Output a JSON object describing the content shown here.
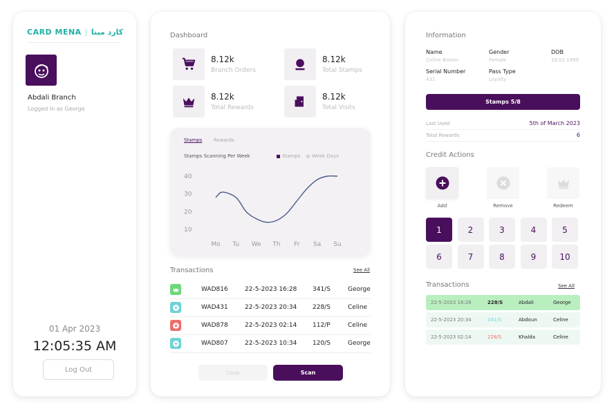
{
  "colors": {
    "brand": "#4a0f5c",
    "teal": "#1fb0a4",
    "green_row": "#b9efbf",
    "light_row": "#eef8f3"
  },
  "left": {
    "logo_en": "CARD MENA",
    "logo_sep": "|",
    "logo_ar": "كارد مينا",
    "branch": "Abdali Branch",
    "logged": "Logged In as George",
    "date": "01 Apr 2023",
    "time": "12:05:35 AM",
    "logout": "Log Out"
  },
  "dashboard": {
    "title": "Dashboard",
    "stats": [
      {
        "value": "8.12k",
        "label": "Branch Orders",
        "icon": "cart-icon"
      },
      {
        "value": "8.12k",
        "label": "Total Stamps",
        "icon": "stamp-icon"
      },
      {
        "value": "8.12k",
        "label": "Total Rewards",
        "icon": "crown-icon"
      },
      {
        "value": "8.12k",
        "label": "Total Visits",
        "icon": "door-icon"
      }
    ],
    "tabs": {
      "active": "Stamps",
      "inactive": "Rewards"
    }
  },
  "chart_data": {
    "type": "line",
    "title": "Stamps Scanning Per Week",
    "legend": [
      "Stamps",
      "Week Days"
    ],
    "categories": [
      "Mo",
      "Tu",
      "We",
      "Th",
      "Fr",
      "Sa",
      "Su"
    ],
    "x": [
      0,
      0.33,
      1,
      1.5,
      2,
      2.5,
      3,
      3.5,
      4,
      4.5,
      5,
      5.5,
      6
    ],
    "y": [
      28,
      31,
      28,
      20,
      16,
      14,
      15,
      19,
      26,
      33,
      38,
      40,
      40
    ],
    "yticks": [
      10,
      20,
      30,
      40
    ],
    "ylim": [
      10,
      40
    ],
    "color": "#4a5a8c"
  },
  "transactions": {
    "title": "Transactions",
    "see_all": "See All",
    "rows": [
      {
        "id": "WAD816",
        "date": "22-5-2023 16:28",
        "amount": "341/S",
        "name": "George",
        "icon": "crown-icon",
        "color": "#6fd77a"
      },
      {
        "id": "WAD431",
        "date": "22-5-2023 20:34",
        "amount": "228/S",
        "name": "Celine",
        "icon": "plus-icon",
        "color": "#6fd3d6"
      },
      {
        "id": "WAD878",
        "date": "22-5-2023 02:14",
        "amount": "112/P",
        "name": "Celine",
        "icon": "close-icon",
        "color": "#ef6b6b"
      },
      {
        "id": "WAD807",
        "date": "22-5-2023 10:34",
        "amount": "120/S",
        "name": "George",
        "icon": "plus-icon",
        "color": "#6fd3d6"
      }
    ],
    "close": "Close",
    "scan": "Scan"
  },
  "info": {
    "title": "Information",
    "name_k": "Name",
    "name_v": "Celine Borom",
    "gender_k": "Gender",
    "gender_v": "Female",
    "dob_k": "DOB",
    "dob_v": "18.01.1999",
    "serial_k": "Serial Number",
    "serial_v": "431",
    "pass_k": "Pass Type",
    "pass_v": "Loyalty",
    "stamps": "Stamps 5/8",
    "last_used_k": "Last Used",
    "last_used_v": "5th of March 2023",
    "rewards_k": "Total Rewards",
    "rewards_v": "6"
  },
  "credit": {
    "title": "Credit Actions",
    "add": "Add",
    "remove": "Remove",
    "redeem": "Redeem",
    "numbers": [
      "1",
      "2",
      "3",
      "4",
      "5",
      "6",
      "7",
      "8",
      "9",
      "10"
    ]
  },
  "right_tx": {
    "title": "Transactions",
    "see_all": "See All",
    "rows": [
      {
        "date": "22-5-2023 16:28",
        "amount": "228/S",
        "branch": "Abdali",
        "name": "George",
        "amount_color": "#222222",
        "bg": "#b9efbf"
      },
      {
        "date": "22-5-2023 20:34",
        "amount": "341/S",
        "branch": "Abdoun",
        "name": "Celine",
        "amount_color": "#6fd3d6",
        "bg": "#eef8f3"
      },
      {
        "date": "22-5-2023 02:14",
        "amount": "228/S",
        "branch": "Khalda",
        "name": "Celine",
        "amount_color": "#ef6b6b",
        "bg": "#eef8f3"
      }
    ]
  }
}
